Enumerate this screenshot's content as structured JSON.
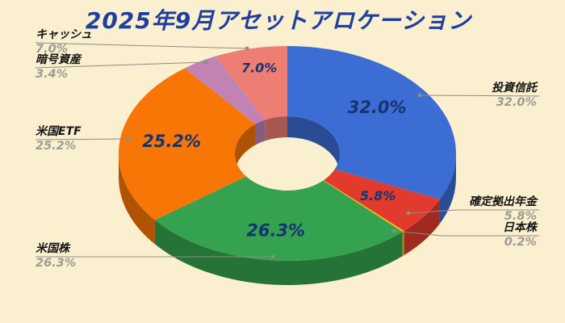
{
  "title": "2025年9月アセットアロケーション",
  "chart_data": {
    "type": "pie",
    "subtype": "3d-donut",
    "title": "2025年9月アセットアロケーション",
    "unit": "%",
    "rotation": "clockwise",
    "start_angle": "top",
    "legend_position": "none",
    "grid": false,
    "background_color": "#FAEFCF",
    "title_color": "#1E3F9E",
    "inside_label_color": "#163470",
    "callout_name_color": "#151515",
    "callout_pct_color": "#9C9C93",
    "leader_line_color": "#8D8D84",
    "slices": [
      {
        "label": "投資信託",
        "value": 32.0,
        "display": "32.0%",
        "color": "#3B6DD4",
        "inside_label": "32.0%"
      },
      {
        "label": "確定拠出年金",
        "value": 5.8,
        "display": "5.8%",
        "color": "#E23B2D",
        "inside_label": "5.8%"
      },
      {
        "label": "日本株",
        "value": 0.2,
        "display": "0.2%",
        "color": "#F2C500",
        "inside_label": ""
      },
      {
        "label": "米国株",
        "value": 26.3,
        "display": "26.3%",
        "color": "#35A24F",
        "inside_label": "26.3%"
      },
      {
        "label": "米国ETF",
        "value": 25.2,
        "display": "25.2%",
        "color": "#F87606",
        "inside_label": "25.2%"
      },
      {
        "label": "暗号資産",
        "value": 3.4,
        "display": "3.4%",
        "color": "#C183B4",
        "inside_label": ""
      },
      {
        "label": "キャッシュ",
        "value": 7.0,
        "display": "7.0%",
        "color": "#EE7E74",
        "inside_label": "7.0%"
      }
    ]
  }
}
